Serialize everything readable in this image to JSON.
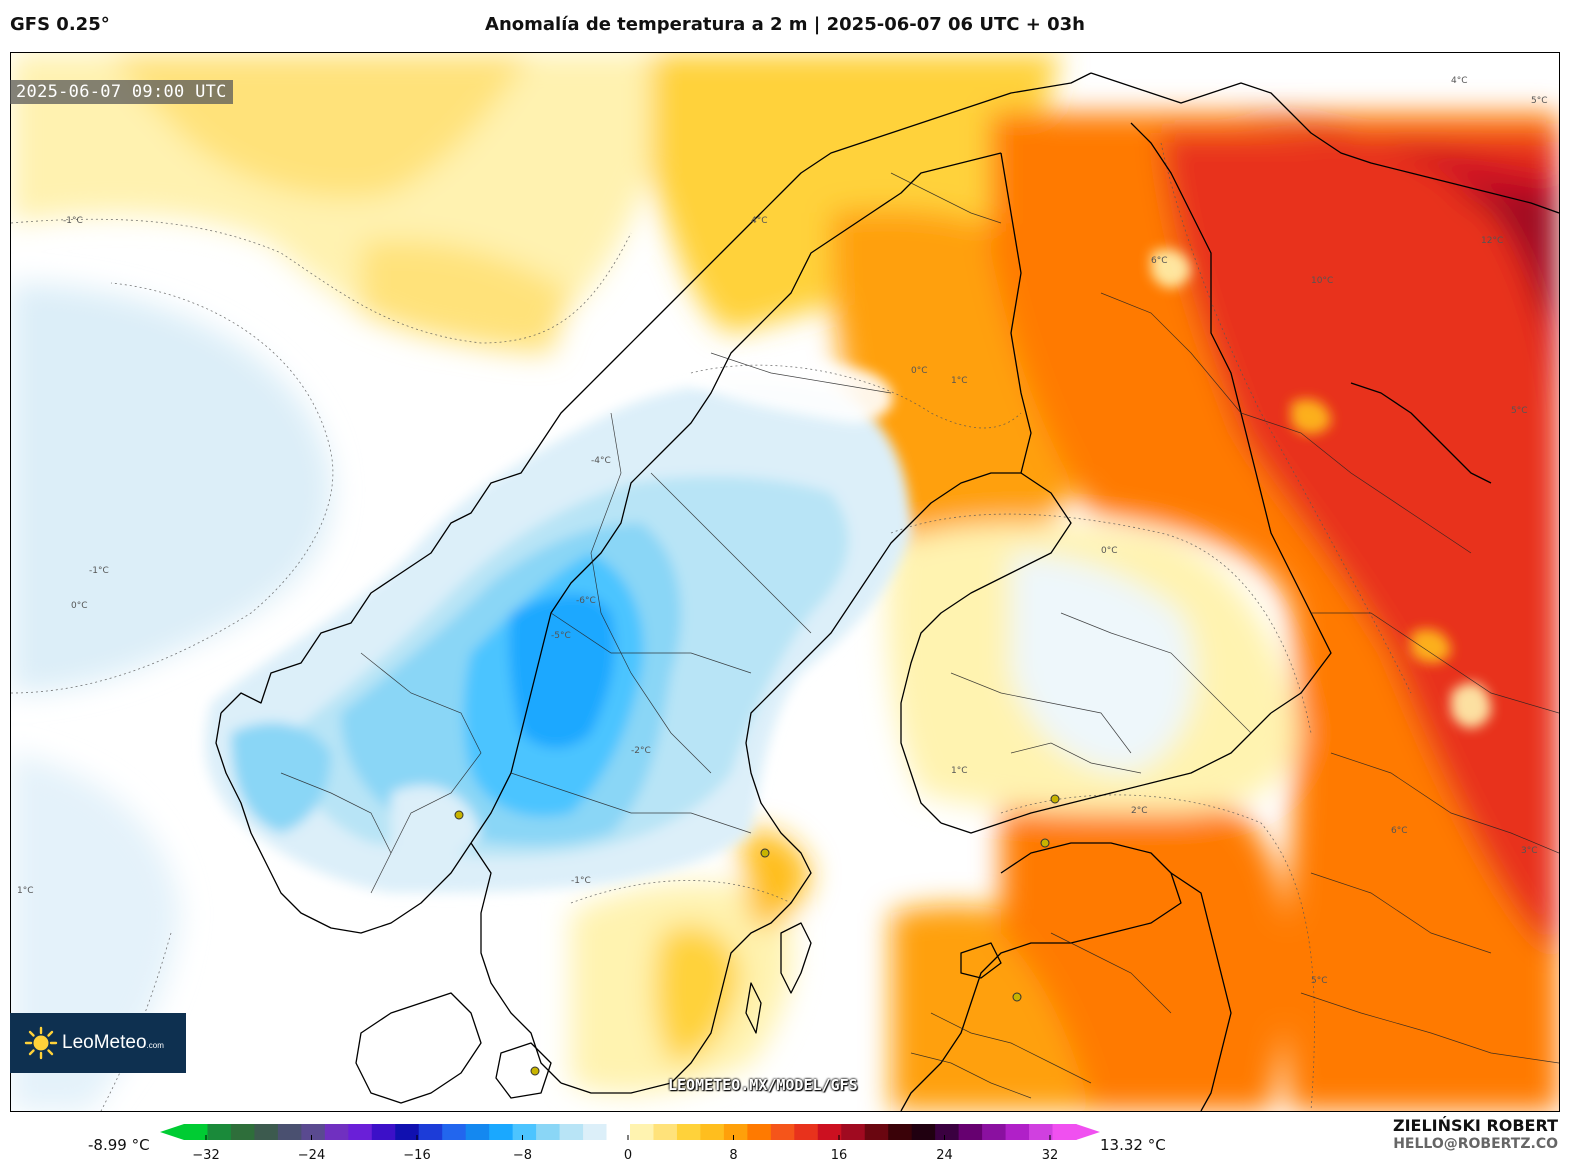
{
  "header": {
    "model": "GFS 0.25°",
    "title": "Anomalía de temperatura a 2 m | 2025-06-07 06 UTC + 03h"
  },
  "map": {
    "timestamp": "2025-06-07 09:00 UTC",
    "watermark": "LEOMETEO.MX/MODEL/GFS",
    "region": "Scandinavia and Baltic",
    "contour_labels": [
      "-1°C",
      "0°C",
      "1°C",
      "-1°C",
      "0°C",
      "1°C",
      "-4°C",
      "-6°C",
      "-5°C",
      "-2°C",
      "-1°C",
      "0°C",
      "4°C",
      "5°C",
      "6°C",
      "10°C",
      "12°C",
      "5°C",
      "4°C",
      "3°C",
      "5°C",
      "6°C",
      "1°C",
      "2°C"
    ]
  },
  "logo": {
    "name": "LeoMeteo",
    "suffix": ".com"
  },
  "colorbar": {
    "min_label": "-8.99 °C",
    "max_label": "13.32 °C",
    "range": [
      -32,
      32
    ],
    "ticks": [
      "−32",
      "−24",
      "−16",
      "−8",
      "0",
      "8",
      "16",
      "24",
      "32"
    ],
    "colors": [
      "#00cc33",
      "#1a8a3a",
      "#2e6e3a",
      "#3c5a4e",
      "#4a5070",
      "#5a4a90",
      "#7030c0",
      "#6a1fd8",
      "#3c10c8",
      "#1010b0",
      "#1c3cd8",
      "#2266ee",
      "#1488f0",
      "#1aa8ff",
      "#4cc4ff",
      "#8ad6f6",
      "#b8e4f6",
      "#dceff9",
      "#ffffff",
      "#fff3b0",
      "#ffe27a",
      "#ffd23a",
      "#ffbe1e",
      "#ffa00a",
      "#ff7a00",
      "#f5551a",
      "#e8321c",
      "#cc1020",
      "#a00a20",
      "#6a0610",
      "#3a0208",
      "#200010",
      "#3a0040",
      "#660070",
      "#8a10a0",
      "#b020c8",
      "#d040e0",
      "#f050f0"
    ]
  },
  "credits": {
    "author": "ZIELIŃSKI ROBERT",
    "email": "HELLO@ROBERTZ.CO"
  }
}
